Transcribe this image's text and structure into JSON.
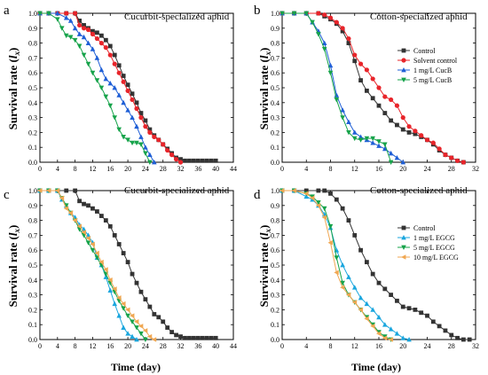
{
  "figure": {
    "x_axis_label": "Time (day)",
    "y_axis_label_main": "Survival rate (",
    "y_axis_label_var": "l",
    "y_axis_label_sub": "x",
    "y_axis_label_close": ")"
  },
  "chart_data": [
    {
      "type": "line",
      "letter": "a",
      "title": "Cucurbit-specialized aphid",
      "xlim": [
        0,
        44
      ],
      "ylim": [
        0,
        1.0
      ],
      "xticks": [
        0,
        4,
        8,
        12,
        16,
        20,
        24,
        28,
        32,
        36,
        40,
        44
      ],
      "yticks": [
        0.0,
        0.1,
        0.2,
        0.3,
        0.4,
        0.5,
        0.6,
        0.7,
        0.8,
        0.9,
        1.0
      ],
      "legend": null,
      "series": [
        {
          "color": "#333333",
          "marker": "square",
          "x": [
            0,
            2,
            4,
            6,
            8,
            9,
            10,
            11,
            12,
            13,
            14,
            15,
            16,
            17,
            18,
            19,
            20,
            21,
            22,
            23,
            24,
            25,
            26,
            27,
            28,
            29,
            30,
            31,
            32,
            33,
            34,
            35,
            36,
            37,
            38,
            39,
            40
          ],
          "y": [
            1.0,
            1.0,
            1.0,
            1.0,
            1.0,
            0.95,
            0.92,
            0.9,
            0.88,
            0.87,
            0.85,
            0.82,
            0.78,
            0.72,
            0.65,
            0.58,
            0.52,
            0.46,
            0.4,
            0.33,
            0.28,
            0.22,
            0.18,
            0.15,
            0.12,
            0.09,
            0.06,
            0.03,
            0.02,
            0.01,
            0.01,
            0.01,
            0.01,
            0.01,
            0.01,
            0.01,
            0.01
          ]
        },
        {
          "color": "#e8242a",
          "marker": "circle",
          "x": [
            0,
            2,
            4,
            6,
            8,
            9,
            10,
            11,
            12,
            13,
            14,
            15,
            16,
            17,
            18,
            19,
            20,
            21,
            22,
            23,
            24,
            25,
            26,
            27,
            28,
            29,
            30,
            31,
            32
          ],
          "y": [
            1.0,
            1.0,
            1.0,
            1.0,
            1.0,
            0.92,
            0.9,
            0.89,
            0.86,
            0.83,
            0.8,
            0.77,
            0.72,
            0.66,
            0.6,
            0.54,
            0.48,
            0.42,
            0.36,
            0.3,
            0.24,
            0.2,
            0.17,
            0.15,
            0.12,
            0.08,
            0.05,
            0.02,
            0.0
          ]
        },
        {
          "color": "#1f5fd6",
          "marker": "triangle-up",
          "x": [
            0,
            2,
            4,
            6,
            7,
            8,
            9,
            10,
            11,
            12,
            13,
            14,
            15,
            16,
            17,
            18,
            19,
            20,
            21,
            22,
            23,
            24,
            25,
            26
          ],
          "y": [
            1.0,
            1.0,
            1.0,
            0.97,
            0.95,
            0.9,
            0.86,
            0.84,
            0.8,
            0.76,
            0.7,
            0.62,
            0.56,
            0.53,
            0.5,
            0.45,
            0.4,
            0.35,
            0.3,
            0.24,
            0.17,
            0.1,
            0.05,
            0.0
          ]
        },
        {
          "color": "#16a34a",
          "marker": "triangle-down",
          "x": [
            0,
            2,
            4,
            5,
            6,
            7,
            8,
            9,
            10,
            11,
            12,
            13,
            14,
            15,
            16,
            17,
            18,
            19,
            20,
            21,
            22,
            23,
            24,
            25
          ],
          "y": [
            1.0,
            1.0,
            0.96,
            0.9,
            0.85,
            0.84,
            0.82,
            0.78,
            0.72,
            0.66,
            0.6,
            0.55,
            0.5,
            0.44,
            0.38,
            0.3,
            0.22,
            0.17,
            0.15,
            0.13,
            0.13,
            0.12,
            0.06,
            0.0
          ]
        }
      ]
    },
    {
      "type": "line",
      "letter": "b",
      "title": "Cotton-specialized aphid",
      "xlim": [
        0,
        32
      ],
      "ylim": [
        0,
        1.0
      ],
      "xticks": [
        0,
        4,
        8,
        12,
        16,
        20,
        24,
        28,
        32
      ],
      "yticks": [
        0.0,
        0.1,
        0.2,
        0.3,
        0.4,
        0.5,
        0.6,
        0.7,
        0.8,
        0.9,
        1.0
      ],
      "legend": {
        "placement": "right",
        "entries": [
          "Control",
          "Solvent control",
          "1 mg/L CucB",
          "5 mg/L CucB"
        ]
      },
      "series": [
        {
          "name": "Control",
          "color": "#333333",
          "marker": "square",
          "x": [
            0,
            2,
            4,
            6,
            7,
            8,
            9,
            10,
            11,
            12,
            13,
            14,
            15,
            16,
            17,
            18,
            19,
            20,
            21,
            22,
            23,
            24,
            25,
            26,
            27,
            28,
            29,
            30
          ],
          "y": [
            1.0,
            1.0,
            1.0,
            1.0,
            0.98,
            0.96,
            0.93,
            0.88,
            0.8,
            0.68,
            0.55,
            0.48,
            0.43,
            0.38,
            0.33,
            0.28,
            0.25,
            0.22,
            0.2,
            0.19,
            0.17,
            0.15,
            0.12,
            0.08,
            0.05,
            0.03,
            0.01,
            0.0
          ]
        },
        {
          "name": "Solvent control",
          "color": "#e8242a",
          "marker": "circle",
          "x": [
            0,
            2,
            4,
            6,
            7,
            8,
            9,
            10,
            11,
            12,
            13,
            14,
            15,
            16,
            17,
            18,
            19,
            20,
            21,
            22,
            23,
            24,
            25,
            26,
            27,
            28,
            29,
            30
          ],
          "y": [
            1.0,
            1.0,
            1.0,
            1.0,
            0.99,
            0.97,
            0.94,
            0.9,
            0.83,
            0.72,
            0.66,
            0.62,
            0.56,
            0.5,
            0.44,
            0.42,
            0.38,
            0.3,
            0.24,
            0.21,
            0.18,
            0.15,
            0.13,
            0.09,
            0.05,
            0.03,
            0.01,
            0.0
          ]
        },
        {
          "name": "1 mg/L CucB",
          "color": "#1f5fd6",
          "marker": "triangle-up",
          "x": [
            0,
            2,
            4,
            5,
            6,
            7,
            8,
            9,
            10,
            11,
            12,
            13,
            14,
            15,
            16,
            17,
            18,
            19,
            20
          ],
          "y": [
            1.0,
            1.0,
            1.0,
            0.94,
            0.88,
            0.8,
            0.65,
            0.45,
            0.35,
            0.27,
            0.2,
            0.17,
            0.15,
            0.13,
            0.11,
            0.09,
            0.06,
            0.03,
            0.0
          ]
        },
        {
          "name": "5 mg/L CucB",
          "color": "#16a34a",
          "marker": "triangle-down",
          "x": [
            0,
            2,
            4,
            5,
            6,
            7,
            8,
            9,
            10,
            11,
            12,
            13,
            14,
            15,
            16,
            17,
            18
          ],
          "y": [
            1.0,
            1.0,
            1.0,
            0.94,
            0.86,
            0.76,
            0.6,
            0.42,
            0.3,
            0.2,
            0.16,
            0.15,
            0.16,
            0.16,
            0.14,
            0.12,
            0.0
          ]
        }
      ]
    },
    {
      "type": "line",
      "letter": "c",
      "title": "Cucurbit-specialized aphid",
      "xlim": [
        0,
        44
      ],
      "ylim": [
        0,
        1.0
      ],
      "xticks": [
        0,
        4,
        8,
        12,
        16,
        20,
        24,
        28,
        32,
        36,
        40,
        44
      ],
      "yticks": [
        0.0,
        0.1,
        0.2,
        0.3,
        0.4,
        0.5,
        0.6,
        0.7,
        0.8,
        0.9,
        1.0
      ],
      "legend": null,
      "series": [
        {
          "color": "#333333",
          "marker": "square",
          "x": [
            0,
            2,
            4,
            6,
            8,
            9,
            10,
            11,
            12,
            13,
            14,
            15,
            16,
            17,
            18,
            19,
            20,
            21,
            22,
            23,
            24,
            25,
            26,
            27,
            28,
            29,
            30,
            31,
            32,
            33,
            34,
            35,
            36,
            37,
            38,
            39,
            40
          ],
          "y": [
            1.0,
            1.0,
            1.0,
            1.0,
            1.0,
            0.93,
            0.91,
            0.9,
            0.88,
            0.86,
            0.83,
            0.8,
            0.76,
            0.7,
            0.64,
            0.58,
            0.52,
            0.44,
            0.38,
            0.32,
            0.27,
            0.22,
            0.17,
            0.15,
            0.12,
            0.08,
            0.05,
            0.03,
            0.02,
            0.01,
            0.01,
            0.01,
            0.01,
            0.01,
            0.01,
            0.01,
            0.01
          ]
        },
        {
          "color": "#1aa6de",
          "marker": "triangle-up",
          "x": [
            0,
            2,
            4,
            5,
            6,
            7,
            8,
            9,
            10,
            11,
            12,
            13,
            14,
            15,
            16,
            17,
            18,
            19,
            20,
            21,
            22
          ],
          "y": [
            1.0,
            1.0,
            1.0,
            0.94,
            0.9,
            0.85,
            0.82,
            0.77,
            0.74,
            0.7,
            0.65,
            0.55,
            0.5,
            0.42,
            0.33,
            0.24,
            0.16,
            0.08,
            0.04,
            0.02,
            0.0
          ]
        },
        {
          "color": "#16a34a",
          "marker": "triangle-down",
          "x": [
            0,
            2,
            4,
            5,
            6,
            7,
            8,
            9,
            10,
            11,
            12,
            13,
            14,
            15,
            16,
            17,
            18,
            19,
            20,
            21,
            22,
            23,
            24
          ],
          "y": [
            1.0,
            1.0,
            1.0,
            0.95,
            0.9,
            0.85,
            0.8,
            0.74,
            0.7,
            0.65,
            0.6,
            0.55,
            0.5,
            0.44,
            0.38,
            0.32,
            0.26,
            0.21,
            0.16,
            0.12,
            0.08,
            0.04,
            0.0
          ]
        },
        {
          "color": "#f0a752",
          "marker": "triangle-left",
          "x": [
            0,
            2,
            4,
            5,
            6,
            7,
            8,
            9,
            10,
            11,
            12,
            13,
            14,
            15,
            16,
            17,
            18,
            19,
            20,
            21,
            22,
            23,
            24,
            25,
            26
          ],
          "y": [
            1.0,
            1.0,
            1.0,
            0.95,
            0.88,
            0.85,
            0.8,
            0.76,
            0.72,
            0.68,
            0.64,
            0.58,
            0.52,
            0.47,
            0.4,
            0.34,
            0.28,
            0.24,
            0.2,
            0.16,
            0.12,
            0.09,
            0.06,
            0.02,
            0.0
          ]
        }
      ]
    },
    {
      "type": "line",
      "letter": "d",
      "title": "Cotton-specialized aphid",
      "xlim": [
        0,
        32
      ],
      "ylim": [
        0,
        1.0
      ],
      "xticks": [
        0,
        4,
        8,
        12,
        16,
        20,
        24,
        28,
        32
      ],
      "yticks": [
        0.0,
        0.1,
        0.2,
        0.3,
        0.4,
        0.5,
        0.6,
        0.7,
        0.8,
        0.9,
        1.0
      ],
      "legend": {
        "placement": "right",
        "entries": [
          "Control",
          "1 mg/L EGCG",
          "5 mg/L EGCG",
          "10 mg/L EGCG"
        ]
      },
      "series": [
        {
          "name": "Control",
          "color": "#333333",
          "marker": "square",
          "x": [
            0,
            2,
            4,
            6,
            7,
            8,
            9,
            10,
            11,
            12,
            13,
            14,
            15,
            16,
            17,
            18,
            19,
            20,
            21,
            22,
            23,
            24,
            25,
            26,
            27,
            28,
            29,
            30,
            31
          ],
          "y": [
            1.0,
            1.0,
            1.0,
            1.0,
            1.0,
            0.98,
            0.94,
            0.88,
            0.8,
            0.7,
            0.6,
            0.52,
            0.44,
            0.38,
            0.34,
            0.3,
            0.26,
            0.22,
            0.21,
            0.2,
            0.18,
            0.16,
            0.12,
            0.09,
            0.06,
            0.03,
            0.01,
            0.0,
            0.0
          ]
        },
        {
          "name": "1 mg/L EGCG",
          "color": "#1aa6de",
          "marker": "triangle-up",
          "x": [
            0,
            2,
            4,
            5,
            6,
            7,
            8,
            9,
            10,
            11,
            12,
            13,
            14,
            15,
            16,
            17,
            18,
            19,
            20,
            21
          ],
          "y": [
            1.0,
            1.0,
            0.96,
            0.94,
            0.9,
            0.84,
            0.75,
            0.6,
            0.5,
            0.42,
            0.35,
            0.28,
            0.24,
            0.2,
            0.15,
            0.1,
            0.07,
            0.04,
            0.01,
            0.0
          ]
        },
        {
          "name": "5 mg/L EGCG",
          "color": "#16a34a",
          "marker": "triangle-down",
          "x": [
            0,
            2,
            4,
            5,
            6,
            7,
            8,
            9,
            10,
            11,
            12,
            13,
            14,
            15,
            16,
            17,
            18
          ],
          "y": [
            1.0,
            1.0,
            0.98,
            0.96,
            0.92,
            0.88,
            0.76,
            0.55,
            0.38,
            0.3,
            0.25,
            0.2,
            0.15,
            0.1,
            0.05,
            0.02,
            0.0
          ]
        },
        {
          "name": "10 mg/L EGCG",
          "color": "#f0a752",
          "marker": "triangle-left",
          "x": [
            0,
            2,
            4,
            5,
            6,
            7,
            8,
            9,
            10,
            11,
            12,
            13,
            14,
            15,
            16,
            17,
            18
          ],
          "y": [
            1.0,
            1.0,
            0.98,
            0.95,
            0.9,
            0.82,
            0.65,
            0.45,
            0.35,
            0.3,
            0.25,
            0.2,
            0.14,
            0.09,
            0.04,
            0.01,
            0.0
          ]
        }
      ]
    }
  ]
}
